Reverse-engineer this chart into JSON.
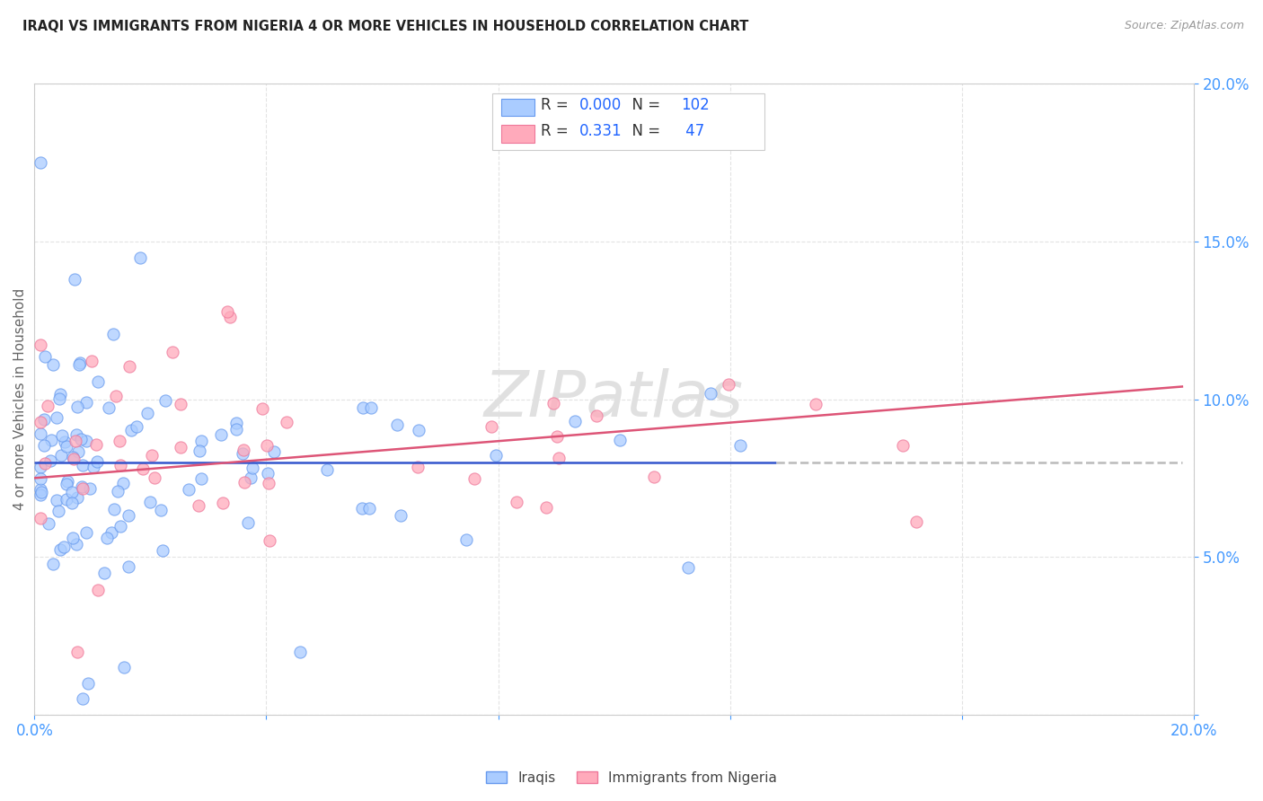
{
  "title": "IRAQI VS IMMIGRANTS FROM NIGERIA 4 OR MORE VEHICLES IN HOUSEHOLD CORRELATION CHART",
  "source": "Source: ZipAtlas.com",
  "ylabel": "4 or more Vehicles in Household",
  "xlim": [
    0.0,
    0.2
  ],
  "ylim": [
    0.0,
    0.2
  ],
  "color_iraqi_fill": "#aaccff",
  "color_iraqi_edge": "#6699ee",
  "color_nigeria_fill": "#ffaabb",
  "color_nigeria_edge": "#ee7799",
  "color_line_iraqi": "#3355cc",
  "color_line_nigeria": "#dd5577",
  "color_trendline_dashed": "#bbbbbb",
  "watermark_color": "#dddddd",
  "background_color": "#ffffff",
  "grid_color": "#dddddd",
  "title_color": "#222222",
  "axis_label_color": "#666666",
  "tick_color": "#4499ff",
  "legend_text_color": "#333333",
  "legend_num_color": "#2266ff"
}
